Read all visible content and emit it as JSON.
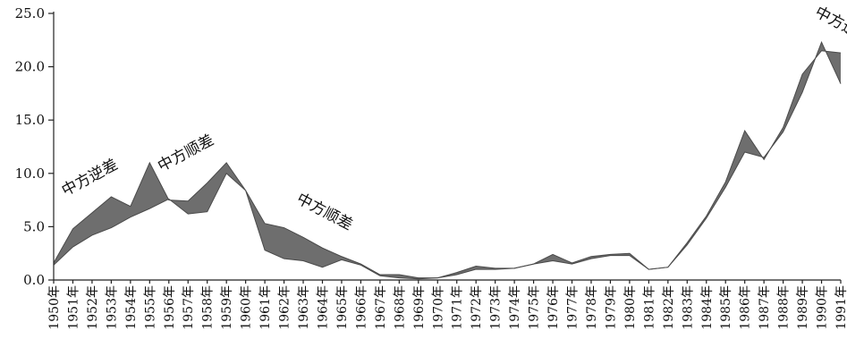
{
  "chart_data": {
    "type": "area",
    "grid": false,
    "legend": "none",
    "ylim": [
      0,
      25
    ],
    "yticks": [
      "0.0",
      "5.0",
      "10.0",
      "15.0",
      "20.0",
      "25.0"
    ],
    "categories": [
      "1950年",
      "1951年",
      "1952年",
      "1953年",
      "1954年",
      "1955年",
      "1956年",
      "1957年",
      "1958年",
      "1959年",
      "1960年",
      "1961年",
      "1962年",
      "1963年",
      "1964年",
      "1965年",
      "1966年",
      "1967年",
      "1968年",
      "1969年",
      "1970年",
      "1971年",
      "1972年",
      "1973年",
      "1974年",
      "1975年",
      "1976年",
      "1977年",
      "1978年",
      "1979年",
      "1980年",
      "1981年",
      "1982年",
      "1983年",
      "1984年",
      "1985年",
      "1986年",
      "1987年",
      "1988年",
      "1989年",
      "1990年",
      "1991年"
    ],
    "series": [
      {
        "values": [
          1.6,
          4.8,
          6.3,
          7.8,
          6.9,
          11.0,
          7.5,
          7.4,
          9.1,
          11.0,
          8.4,
          5.3,
          4.9,
          4.0,
          3.0,
          2.2,
          1.5,
          0.5,
          0.5,
          0.2,
          0.2,
          0.7,
          1.3,
          1.1,
          1.1,
          1.5,
          2.4,
          1.6,
          2.2,
          2.4,
          2.5,
          1.0,
          1.2,
          3.5,
          6.0,
          9.2,
          14.0,
          11.3,
          14.3,
          19.3,
          21.5,
          21.3
        ]
      },
      {
        "values": [
          1.4,
          3.1,
          4.2,
          4.9,
          5.9,
          6.7,
          7.6,
          6.2,
          6.4,
          10.0,
          8.4,
          2.8,
          2.0,
          1.8,
          1.2,
          1.9,
          1.4,
          0.4,
          0.2,
          0.1,
          0.2,
          0.5,
          1.0,
          1.0,
          1.1,
          1.5,
          1.8,
          1.5,
          2.0,
          2.3,
          2.3,
          1.0,
          1.2,
          3.3,
          5.8,
          8.7,
          12.0,
          11.5,
          13.9,
          17.6,
          22.3,
          18.4
        ]
      }
    ],
    "annotations": [
      {
        "text": "中方逆差",
        "at": "1952年",
        "value": 9.2
      },
      {
        "text": "中方顺差",
        "at": "1957年",
        "value": 11.5
      },
      {
        "text": "中方顺差",
        "at": "1964年",
        "value": 6.0
      },
      {
        "text": "中方逆差",
        "at": "1991年",
        "value": 23.5
      }
    ],
    "colors": {
      "fill": "#6e6e6e",
      "line": "#4a4a4a",
      "axis": "#222222"
    }
  }
}
